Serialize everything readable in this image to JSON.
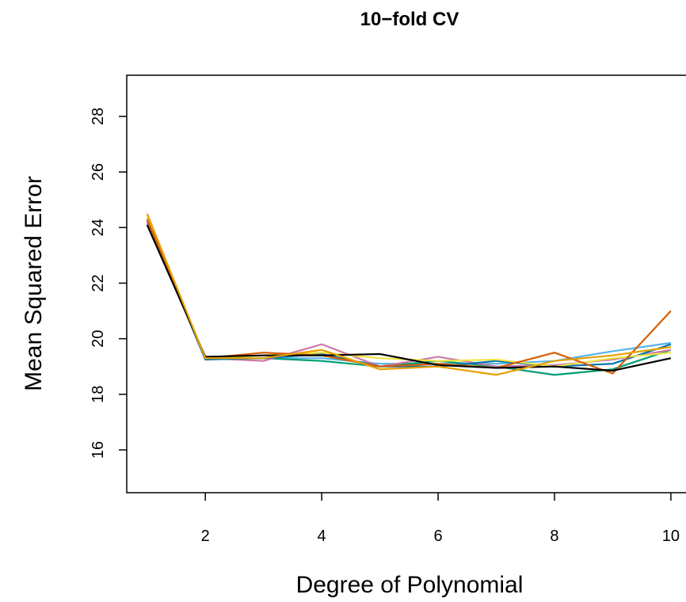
{
  "chart_data": {
    "type": "line",
    "title": "10−fold CV",
    "x_label": "Degree of Polynomial",
    "y_label": "Mean Squared Error",
    "x": [
      1,
      2,
      3,
      4,
      5,
      6,
      7,
      8,
      9,
      10
    ],
    "series": [
      {
        "color": "#56B4E9",
        "values": [
          24.2,
          19.3,
          19.3,
          19.3,
          19.1,
          19.1,
          19.1,
          19.2,
          19.55,
          19.85
        ]
      },
      {
        "color": "#009E73",
        "values": [
          24.2,
          19.3,
          19.3,
          19.2,
          19.0,
          19.2,
          19.0,
          18.7,
          18.9,
          19.6
        ]
      },
      {
        "color": "#CC79A7",
        "values": [
          24.2,
          19.3,
          19.2,
          19.8,
          19.0,
          19.35,
          19.0,
          19.05,
          19.25,
          19.6
        ]
      },
      {
        "color": "#0072B2",
        "values": [
          24.3,
          19.25,
          19.3,
          19.45,
          19.0,
          19.0,
          19.2,
          19.0,
          19.1,
          19.8
        ]
      },
      {
        "color": "#F0E442",
        "values": [
          24.4,
          19.3,
          19.4,
          19.5,
          19.3,
          19.2,
          19.25,
          19.0,
          19.3,
          19.5
        ]
      },
      {
        "color": "#D55E00",
        "values": [
          24.3,
          19.3,
          19.5,
          19.4,
          19.0,
          19.1,
          18.95,
          19.5,
          18.75,
          21.0
        ]
      },
      {
        "color": "#000000",
        "values": [
          24.1,
          19.35,
          19.4,
          19.4,
          19.45,
          19.05,
          18.95,
          19.0,
          18.85,
          19.3
        ]
      },
      {
        "color": "#E69F00",
        "values": [
          24.5,
          19.3,
          19.3,
          19.6,
          18.9,
          19.0,
          18.7,
          19.2,
          19.4,
          19.7
        ]
      }
    ],
    "xlim": [
      0.65,
      10.26
    ],
    "ylim": [
      14.46,
      29.48
    ],
    "xticks": [
      2,
      4,
      6,
      8,
      10
    ],
    "yticks": [
      16,
      18,
      20,
      22,
      24,
      26,
      28
    ]
  }
}
